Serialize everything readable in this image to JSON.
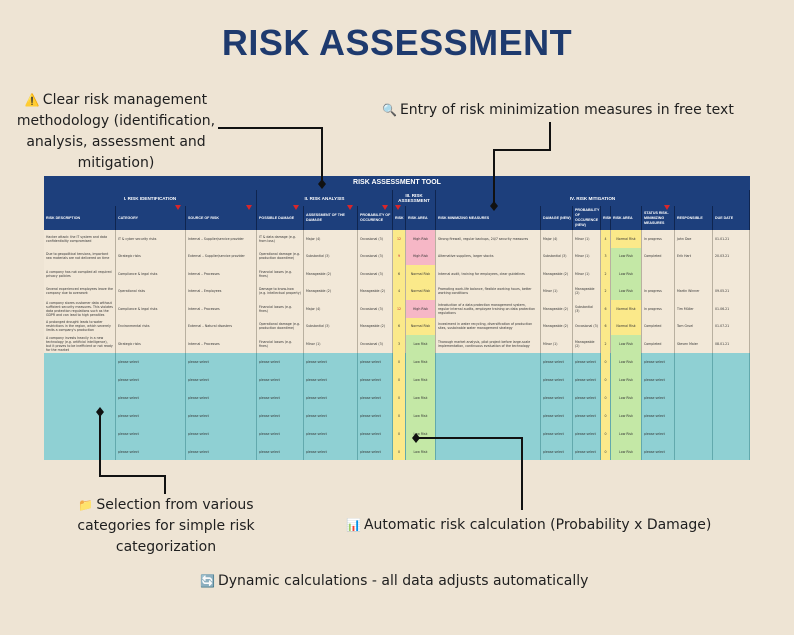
{
  "page": {
    "title": "RISK ASSESSMENT"
  },
  "callouts": {
    "methodology": {
      "icon": "⚠️",
      "text": "Clear risk management methodology (identification, analysis, assessment and mitigation)"
    },
    "free_text": {
      "icon": "🔍",
      "text": "Entry of risk minimization measures in free text"
    },
    "categories": {
      "icon": "📁",
      "text": "Selection from various categories for simple risk categorization"
    },
    "auto_calc": {
      "icon": "📊",
      "text": "Automatic risk calculation (Probability x Damage)"
    },
    "dynamic": {
      "icon": "🔄",
      "text": "Dynamic calculations - all data adjusts automatically"
    }
  },
  "sheet": {
    "title": "RISK ASSESSMENT TOOL",
    "sections": [
      "I. RISK IDENTIFICATION",
      "II. RISK ANALYSIS",
      "III. RISK ASSESSMENT",
      "IV. RISK MITIGATION"
    ],
    "columns": [
      "RISK DESCRIPTION",
      "CATEGORY",
      "SOURCE OF RISK",
      "POSSIBLE DAMAGE",
      "ASSESSMENT OF THE DAMAGE",
      "PROBABILITY OF OCCURENCE",
      "RISK",
      "RISK AREA",
      "RISK MINIMIZING MEASURES",
      "DAMAGE (NEW)",
      "PROBABILITY OF OCCURENCE (NEW)",
      "RISK",
      "RISK AREA",
      "STATUS RISK-MINIMIZING MEASURES",
      "RESPONSIBLE",
      "DUE DATE"
    ],
    "colors": {
      "high": "#f6b7c6",
      "normal": "#fbe98a",
      "low": "#c4e8a6",
      "risk_num": "#fbe98a",
      "header": "#1d3f7c",
      "empty_row": "#8fd0d3"
    },
    "rows": [
      [
        "Hacker attack: the IT system and data confidentiality compromised",
        "IT & cyber security risks",
        "Internal – Supplier/service provider",
        "IT & data damage (e.g. from loss)",
        "Major (4)",
        "Occasional (3)",
        "12",
        "High Risk",
        "Strong firewall, regular backups, 24/7 security measures",
        "Major (4)",
        "Minor (1)",
        "4",
        "Normal Risk",
        "In progress",
        "John Doe",
        "01.01.21"
      ],
      [
        "Due to geopolitical tensions, important raw materials are not delivered on time",
        "Strategic risks",
        "External – Supplier/service provider",
        "Operational damage (e.g. production downtime)",
        "Substantial (3)",
        "Occasional (3)",
        "9",
        "High Risk",
        "Alternative suppliers, larger stocks",
        "Substantial (3)",
        "Minor (1)",
        "3",
        "Low Risk",
        "Completed",
        "Erik Hart",
        "20.03.21"
      ],
      [
        "A company has not complied all required privacy policies",
        "Compliance & legal risks",
        "Internal – Processes",
        "Financial losses (e.g. fines)",
        "Manageable (2)",
        "Occasional (3)",
        "6",
        "Normal Risk",
        "Internal audit, training for employees, clear guidelines",
        "Manageable (2)",
        "Minor (1)",
        "2",
        "Low Risk",
        "",
        "",
        ""
      ],
      [
        "Several experienced employees leave the company due to overwork",
        "Operational risks",
        "Internal – Employees",
        "Damage to know-how (e.g. intellectual property)",
        "Manageable (2)",
        "Manageable (2)",
        "4",
        "Normal Risk",
        "Promoting work-life balance, flexible working hours, better working conditions",
        "Minor (1)",
        "Manageable (2)",
        "2",
        "Low Risk",
        "In progress",
        "Martin Winner",
        "09.05.21"
      ],
      [
        "A company stores customer data without sufficient security measures. This violates data protection regulations such as the GDPR and can lead to high penalties",
        "Compliance & legal risks",
        "Internal – Processes",
        "Financial losses (e.g. fines)",
        "Major (4)",
        "Occasional (3)",
        "12",
        "High Risk",
        "Introduction of a data protection management system, regular internal audits, employee training on data protection regulations",
        "Manageable (2)",
        "Substantial (3)",
        "6",
        "Normal Risk",
        "In progress",
        "Tim Müller",
        "01.06.21"
      ],
      [
        "A prolonged drought leads to water restrictions in the region, which severely limits a company's production",
        "Environmental risks",
        "External – Natural disasters",
        "Operational damage (e.g. production downtime)",
        "Substantial (3)",
        "Manageable (2)",
        "6",
        "Normal Risk",
        "Investment in water recycling, diversification of production sites, sustainable water management strategy",
        "Manageable (2)",
        "Occasional (3)",
        "6",
        "Normal Risk",
        "Completed",
        "Tom Gruel",
        "01.07.21"
      ],
      [
        "A company invests heavily in a new technology (e.g. artificial intelligence), but it proves to be inefficient or not ready for the market",
        "Strategic risks",
        "Internal – Processes",
        "Financial losses (e.g. fines)",
        "Minor (1)",
        "Occasional (3)",
        "3",
        "Low Risk",
        "Thorough market analysis, pilot project before large-scale implementation, continuous evaluation of the technology",
        "Minor (1)",
        "Manageable (2)",
        "2",
        "Low Risk",
        "Completed",
        "Steven Maier",
        "08.01.21"
      ]
    ],
    "empty_row": [
      "",
      "please select",
      "please select",
      "please select",
      "please select",
      "please select",
      "0",
      "Low Risk",
      "",
      "please select",
      "please select",
      "0",
      "Low Risk",
      "please select",
      "",
      ""
    ]
  }
}
